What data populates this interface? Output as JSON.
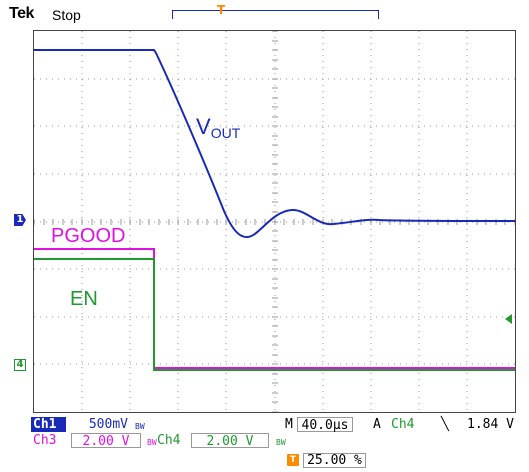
{
  "header": {
    "brand": "Tek",
    "acquisition_state": "Stop",
    "record_trigger_glyph": "T"
  },
  "plot": {
    "markers": {
      "ch1": "1",
      "ch4": "4",
      "trigger": "T"
    },
    "labels": {
      "vout_main": "V",
      "vout_sub": "OUT",
      "pgood": "PGOOD",
      "en": "EN"
    },
    "colors": {
      "ch1": "#1a2ab8",
      "ch3": "#e010e0",
      "ch4": "#1f9a2f",
      "trigger": "#ff8a00"
    }
  },
  "readouts": {
    "ch1_tag": "Ch1",
    "ch1_scale": "500mV",
    "ch1_bw": "BW",
    "ch3_tag": "Ch3",
    "ch3_scale": "2.00 V",
    "ch3_bw": "BW",
    "ch4_tag": "Ch4",
    "ch4_scale": "2.00 V",
    "ch4_bw": "BW",
    "timebase_tag": "M",
    "timebase": "40.0µs",
    "trigger_tag": "A",
    "trigger_source": "Ch4",
    "trigger_slope": "╲",
    "trigger_level": "1.84 V",
    "trigger_position_icon": "T",
    "trigger_position": "25.00 %"
  }
}
